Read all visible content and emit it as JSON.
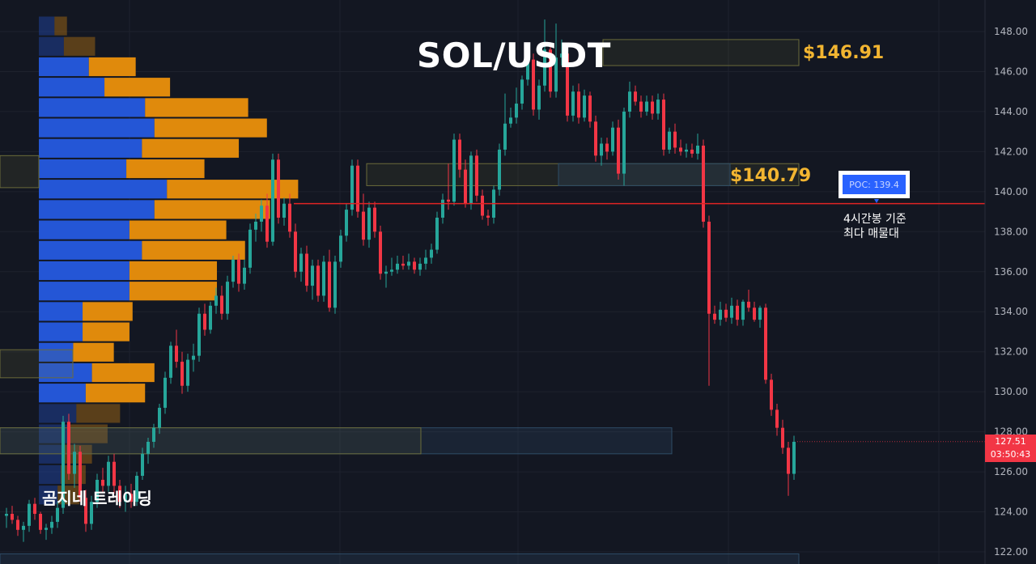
{
  "title": "SOL/USDT",
  "watermark": "곰지네 트레이딩",
  "levels": {
    "upper": "$146.91",
    "lower": "$140.79"
  },
  "poc": {
    "label": "POC: 139.4",
    "note_line1": "4시간봉 기준",
    "note_line2": "최다 매물대"
  },
  "last_price": {
    "price": "127.51",
    "countdown": "03:50:43"
  },
  "colors": {
    "background": "#131722",
    "bull": "#26a69a",
    "bear": "#f23645",
    "profile_buy": "#2456d6",
    "profile_sell": "#e08a0c",
    "poc_line": "#e02424",
    "level_text": "#f2b531"
  },
  "chart_data": {
    "type": "candlestick",
    "y_axis": {
      "ticks": [
        "148.00",
        "146.00",
        "144.00",
        "142.00",
        "140.00",
        "138.00",
        "136.00",
        "134.00",
        "132.00",
        "130.00",
        "128.00",
        "126.00",
        "124.00",
        "122.00"
      ],
      "range": [
        121.5,
        149.2
      ]
    },
    "poc_price": 139.4,
    "price_levels": [
      146.91,
      140.79
    ],
    "candles": [
      [
        123.8,
        124.2,
        123.2,
        123.9
      ],
      [
        123.9,
        124.3,
        123.4,
        123.6
      ],
      [
        123.6,
        123.8,
        122.8,
        123.1
      ],
      [
        123.1,
        123.5,
        122.5,
        123.3
      ],
      [
        123.3,
        124.6,
        123.0,
        124.4
      ],
      [
        124.4,
        124.7,
        123.6,
        123.9
      ],
      [
        123.9,
        124.0,
        122.9,
        123.1
      ],
      [
        123.1,
        123.4,
        122.6,
        123.2
      ],
      [
        123.2,
        123.8,
        122.9,
        123.5
      ],
      [
        123.5,
        124.5,
        123.2,
        124.2
      ],
      [
        124.2,
        128.8,
        123.9,
        128.5
      ],
      [
        128.5,
        128.9,
        125.6,
        125.9
      ],
      [
        125.9,
        127.4,
        125.2,
        127.0
      ],
      [
        127.0,
        127.3,
        124.5,
        124.7
      ],
      [
        124.7,
        125.1,
        123.0,
        123.4
      ],
      [
        123.4,
        124.8,
        123.1,
        124.5
      ],
      [
        124.5,
        125.9,
        124.2,
        125.6
      ],
      [
        125.6,
        126.2,
        125.0,
        125.3
      ],
      [
        125.3,
        126.8,
        125.0,
        126.5
      ],
      [
        126.5,
        126.9,
        124.9,
        125.3
      ],
      [
        125.3,
        125.6,
        124.2,
        124.5
      ],
      [
        124.5,
        125.3,
        124.0,
        124.9
      ],
      [
        124.9,
        125.4,
        124.2,
        124.5
      ],
      [
        124.5,
        126.0,
        124.3,
        125.8
      ],
      [
        125.8,
        127.2,
        125.6,
        126.9
      ],
      [
        126.9,
        127.7,
        126.4,
        127.5
      ],
      [
        127.5,
        128.4,
        127.2,
        128.2
      ],
      [
        128.2,
        129.4,
        127.9,
        129.2
      ],
      [
        129.2,
        131.0,
        128.9,
        130.7
      ],
      [
        130.7,
        132.5,
        130.4,
        132.3
      ],
      [
        132.3,
        133.1,
        131.2,
        131.5
      ],
      [
        131.5,
        132.0,
        129.9,
        130.3
      ],
      [
        130.3,
        131.9,
        130.0,
        131.6
      ],
      [
        131.6,
        132.4,
        131.0,
        131.8
      ],
      [
        131.8,
        134.2,
        131.5,
        133.9
      ],
      [
        133.9,
        134.4,
        132.8,
        133.1
      ],
      [
        133.1,
        134.5,
        132.9,
        134.3
      ],
      [
        134.3,
        135.2,
        133.9,
        134.8
      ],
      [
        134.8,
        135.3,
        133.6,
        133.9
      ],
      [
        133.9,
        135.8,
        133.6,
        135.5
      ],
      [
        135.5,
        136.8,
        135.2,
        136.6
      ],
      [
        136.6,
        136.9,
        135.0,
        135.4
      ],
      [
        135.4,
        136.6,
        135.1,
        136.2
      ],
      [
        136.2,
        138.4,
        135.9,
        138.1
      ],
      [
        138.1,
        138.9,
        137.5,
        138.5
      ],
      [
        138.5,
        139.6,
        138.0,
        139.3
      ],
      [
        139.3,
        139.9,
        137.2,
        137.5
      ],
      [
        137.5,
        141.9,
        137.3,
        141.6
      ],
      [
        141.6,
        141.9,
        138.4,
        138.7
      ],
      [
        138.7,
        139.7,
        138.3,
        139.4
      ],
      [
        139.4,
        139.9,
        137.7,
        138.0
      ],
      [
        138.0,
        138.4,
        135.7,
        136.0
      ],
      [
        136.0,
        137.2,
        135.5,
        136.9
      ],
      [
        136.9,
        137.3,
        135.0,
        135.3
      ],
      [
        135.3,
        136.6,
        134.6,
        136.3
      ],
      [
        136.3,
        136.6,
        134.5,
        134.8
      ],
      [
        134.8,
        136.8,
        134.5,
        136.5
      ],
      [
        136.5,
        137.1,
        134.0,
        134.2
      ],
      [
        134.2,
        136.8,
        133.9,
        136.5
      ],
      [
        136.5,
        138.1,
        136.2,
        137.8
      ],
      [
        137.8,
        139.4,
        137.5,
        139.1
      ],
      [
        139.1,
        141.6,
        138.8,
        141.3
      ],
      [
        141.3,
        141.6,
        138.7,
        139.0
      ],
      [
        139.0,
        139.9,
        137.3,
        137.6
      ],
      [
        137.6,
        139.5,
        137.2,
        139.2
      ],
      [
        139.2,
        139.5,
        137.7,
        138.0
      ],
      [
        138.0,
        138.3,
        135.6,
        135.9
      ],
      [
        135.9,
        136.3,
        135.2,
        136.0
      ],
      [
        136.0,
        136.7,
        135.8,
        136.1
      ],
      [
        136.1,
        136.8,
        135.9,
        136.4
      ],
      [
        136.4,
        136.8,
        136.1,
        136.3
      ],
      [
        136.3,
        136.9,
        136.1,
        136.5
      ],
      [
        136.5,
        136.7,
        135.9,
        136.1
      ],
      [
        136.1,
        136.7,
        135.8,
        136.4
      ],
      [
        136.4,
        137.1,
        136.1,
        136.7
      ],
      [
        136.7,
        137.4,
        136.4,
        137.1
      ],
      [
        137.1,
        139.0,
        136.9,
        138.7
      ],
      [
        138.7,
        139.9,
        138.4,
        139.6
      ],
      [
        139.6,
        141.4,
        139.1,
        139.5
      ],
      [
        139.5,
        142.9,
        139.3,
        142.6
      ],
      [
        142.6,
        142.9,
        140.7,
        141.1
      ],
      [
        141.1,
        141.6,
        139.2,
        139.4
      ],
      [
        139.4,
        142.0,
        139.1,
        141.8
      ],
      [
        141.8,
        142.1,
        139.5,
        139.8
      ],
      [
        139.8,
        140.1,
        138.6,
        138.8
      ],
      [
        138.8,
        139.1,
        138.3,
        138.7
      ],
      [
        138.7,
        140.3,
        138.4,
        140.1
      ],
      [
        140.1,
        142.4,
        139.8,
        142.1
      ],
      [
        142.1,
        144.9,
        141.8,
        143.4
      ],
      [
        143.4,
        144.2,
        143.2,
        143.7
      ],
      [
        143.7,
        145.2,
        143.4,
        144.4
      ],
      [
        144.4,
        145.8,
        144.1,
        145.6
      ],
      [
        145.6,
        147.0,
        145.3,
        146.6
      ],
      [
        146.6,
        146.9,
        143.8,
        144.1
      ],
      [
        144.1,
        145.6,
        143.6,
        145.3
      ],
      [
        145.3,
        148.6,
        145.0,
        147.1
      ],
      [
        147.1,
        147.3,
        144.7,
        145.0
      ],
      [
        145.0,
        148.4,
        144.7,
        146.7
      ],
      [
        146.7,
        147.6,
        146.3,
        146.9
      ],
      [
        146.9,
        147.3,
        143.5,
        143.8
      ],
      [
        143.8,
        145.3,
        143.5,
        145.0
      ],
      [
        145.0,
        145.4,
        143.4,
        143.7
      ],
      [
        143.7,
        145.1,
        143.5,
        144.8
      ],
      [
        144.8,
        145.0,
        143.2,
        143.5
      ],
      [
        143.5,
        143.8,
        141.5,
        141.8
      ],
      [
        141.8,
        142.7,
        141.3,
        142.4
      ],
      [
        142.4,
        142.7,
        141.6,
        142.0
      ],
      [
        142.0,
        143.5,
        141.8,
        143.2
      ],
      [
        143.2,
        143.6,
        140.6,
        140.9
      ],
      [
        140.9,
        144.2,
        140.3,
        144.0
      ],
      [
        144.0,
        145.5,
        143.7,
        145.0
      ],
      [
        145.0,
        145.3,
        144.3,
        144.5
      ],
      [
        144.5,
        144.8,
        143.7,
        144.0
      ],
      [
        144.0,
        144.8,
        143.8,
        144.5
      ],
      [
        144.5,
        144.8,
        143.6,
        143.9
      ],
      [
        143.9,
        144.9,
        143.6,
        144.6
      ],
      [
        144.6,
        144.9,
        141.8,
        142.1
      ],
      [
        142.1,
        143.2,
        141.9,
        143.0
      ],
      [
        143.0,
        143.4,
        141.9,
        142.2
      ],
      [
        142.2,
        142.6,
        141.8,
        142.0
      ],
      [
        142.0,
        142.4,
        141.7,
        142.1
      ],
      [
        142.1,
        142.4,
        141.7,
        141.9
      ],
      [
        141.9,
        142.9,
        141.6,
        142.3
      ],
      [
        142.3,
        142.6,
        138.2,
        138.5
      ],
      [
        138.5,
        138.8,
        130.3,
        133.9
      ],
      [
        133.9,
        134.3,
        133.4,
        133.6
      ],
      [
        133.6,
        134.5,
        133.3,
        134.1
      ],
      [
        134.1,
        134.4,
        133.5,
        133.7
      ],
      [
        133.7,
        134.7,
        133.4,
        134.3
      ],
      [
        134.3,
        134.6,
        133.3,
        133.6
      ],
      [
        133.6,
        134.6,
        133.3,
        134.5
      ],
      [
        134.5,
        135.1,
        134.0,
        134.2
      ],
      [
        134.2,
        134.5,
        133.5,
        133.6
      ],
      [
        133.6,
        134.3,
        133.2,
        134.2
      ],
      [
        134.2,
        134.4,
        130.4,
        130.6
      ],
      [
        130.6,
        130.9,
        128.8,
        129.1
      ],
      [
        129.1,
        129.4,
        127.8,
        128.2
      ],
      [
        128.2,
        128.6,
        126.9,
        127.2
      ],
      [
        127.2,
        127.5,
        124.8,
        125.9
      ],
      [
        125.9,
        127.8,
        125.6,
        127.5
      ]
    ],
    "volume_profile": [
      [
        5,
        4
      ],
      [
        8,
        10
      ],
      [
        16,
        15
      ],
      [
        21,
        21
      ],
      [
        34,
        33
      ],
      [
        37,
        36
      ],
      [
        33,
        31
      ],
      [
        28,
        25
      ],
      [
        41,
        42
      ],
      [
        37,
        37
      ],
      [
        29,
        31
      ],
      [
        33,
        33
      ],
      [
        29,
        28
      ],
      [
        29,
        28
      ],
      [
        14,
        16
      ],
      [
        14,
        15
      ],
      [
        11,
        13
      ],
      [
        17,
        20
      ],
      [
        15,
        19
      ],
      [
        12,
        14
      ],
      [
        10,
        12
      ],
      [
        8,
        9
      ],
      [
        7,
        8
      ],
      [
        6,
        7
      ]
    ]
  }
}
